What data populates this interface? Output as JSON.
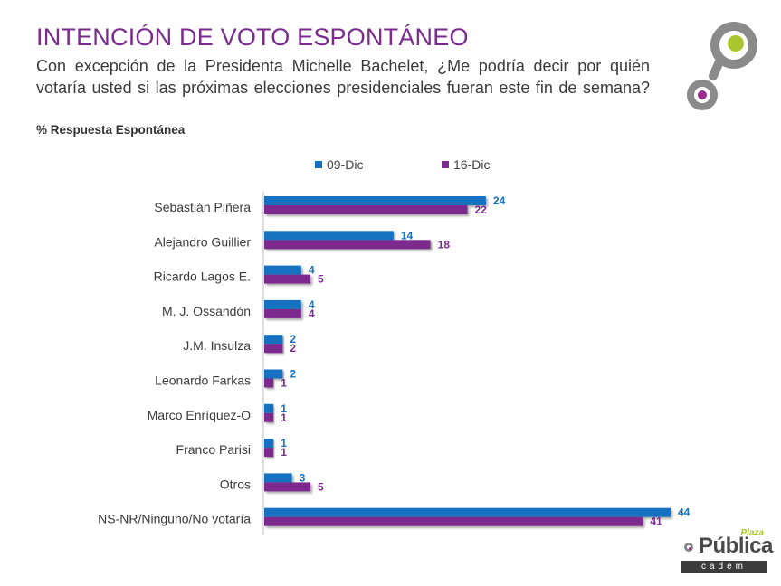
{
  "header": {
    "title": "INTENCIÓN DE VOTO ESPONTÁNEO",
    "subtitle": "Con excepción de la Presidenta Michelle Bachelet, ¿Me podría decir por quién votaría usted si las próximas elecciones presidenciales fueran este fin de semana?",
    "note": "% Respuesta Espontánea"
  },
  "logo": {
    "plaza": "Plaza",
    "publica": "Pública",
    "cadem": "cadem"
  },
  "colors": {
    "title": "#7b2a8e",
    "series_1": "#1372c1",
    "series_2": "#7b2a8e",
    "logo_green": "#a8c52e",
    "logo_gray": "#8a8a8a",
    "logo_purple": "#9c2b8c"
  },
  "chart_data": {
    "type": "bar",
    "orientation": "horizontal",
    "categories": [
      "Sebastián Piñera",
      "Alejandro  Guillier",
      "Ricardo Lagos E.",
      "M. J. Ossandón",
      "J.M. Insulza",
      "Leonardo Farkas",
      "Marco Enríquez-O",
      "Franco Parisi",
      "Otros",
      "NS-NR/Ninguno/No votaría"
    ],
    "series": [
      {
        "name": "09-Dic",
        "values": [
          24,
          14,
          4,
          4,
          2,
          2,
          1,
          1,
          3,
          44
        ]
      },
      {
        "name": "16-Dic",
        "values": [
          22,
          18,
          5,
          4,
          2,
          1,
          1,
          1,
          5,
          41
        ]
      }
    ],
    "xlim": [
      0,
      44
    ],
    "legend_position": "top",
    "data_labels": true,
    "grid": false
  }
}
